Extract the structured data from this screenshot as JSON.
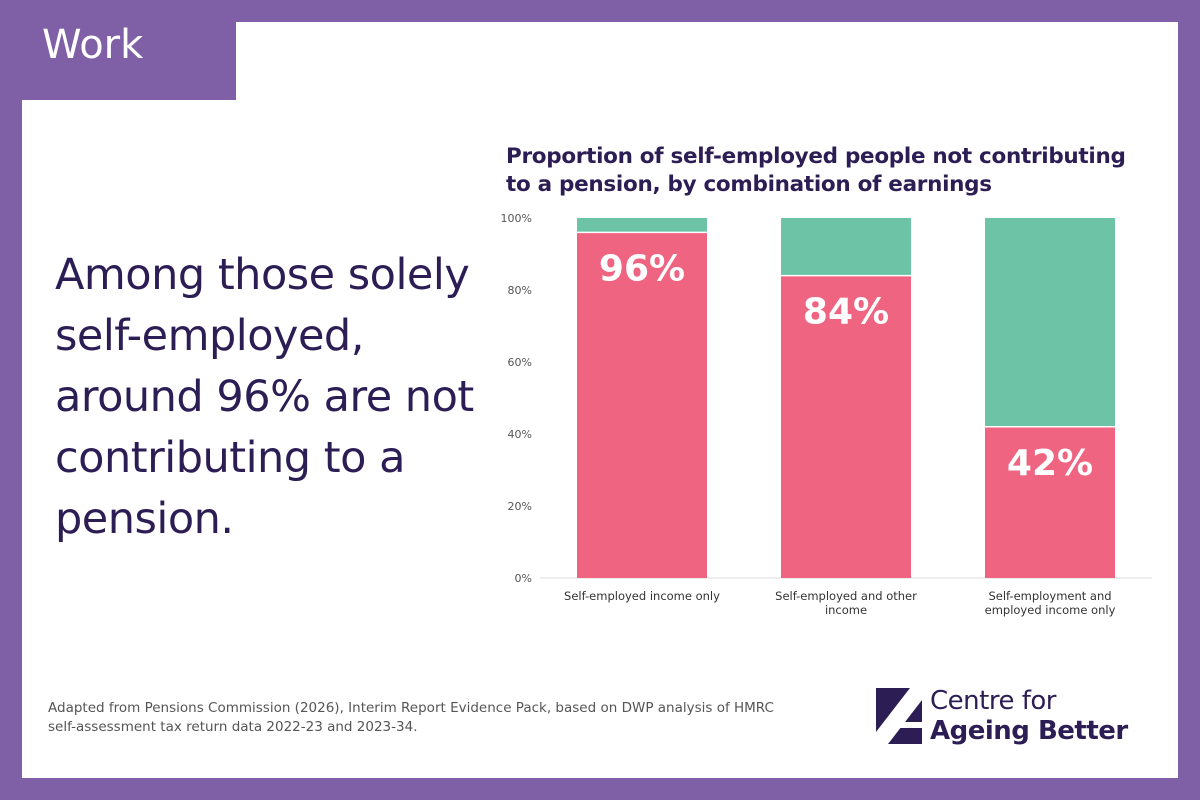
{
  "tag": {
    "label": "Work"
  },
  "headline": {
    "lines": [
      "Among those solely",
      "self-employed,",
      "around 96% are not",
      "contributing to a",
      "pension."
    ]
  },
  "source": {
    "lines": [
      "Adapted from Pensions Commission (2026), Interim Report Evidence Pack, based on DWP analysis of HMRC",
      "self-assessment tax return data 2022-23 and 2023-34."
    ]
  },
  "logo": {
    "line1": "Centre for",
    "line2": "Ageing Better"
  },
  "colors": {
    "frame": "#7f5fa6",
    "not_contributing": "#ef6480",
    "contributing": "#6cc3a5",
    "text": "#2d1d55"
  },
  "chart_data": {
    "type": "bar",
    "stacked": true,
    "title_lines": [
      "Proportion of self-employed people not contributing",
      "to a pension, by combination of earnings"
    ],
    "categories": [
      [
        "Self-employed income only"
      ],
      [
        "Self-employed and other",
        "income"
      ],
      [
        "Self-employment and",
        "employed income only"
      ]
    ],
    "series": [
      {
        "values": [
          96,
          84,
          42
        ],
        "color": "#ef6480"
      },
      {
        "values": [
          4,
          16,
          58
        ],
        "color": "#6cc3a5"
      }
    ],
    "data_labels": [
      "96%",
      "84%",
      "42%"
    ],
    "yticks": [
      "0%",
      "20%",
      "40%",
      "60%",
      "80%",
      "100%"
    ],
    "ylim": [
      0,
      100
    ],
    "grid": false,
    "legend": "none"
  }
}
